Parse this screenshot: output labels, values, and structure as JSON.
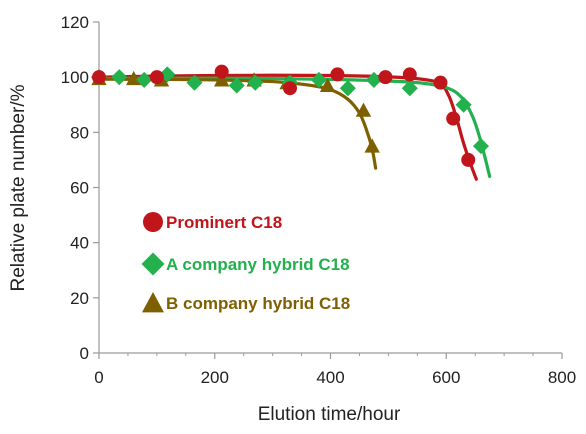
{
  "chart_data": {
    "type": "scatter",
    "xlabel": "Elution time/hour",
    "ylabel": "Relative plate number/%",
    "xlim": [
      0,
      800
    ],
    "ylim": [
      0,
      120
    ],
    "xticks": [
      0,
      200,
      400,
      600,
      800
    ],
    "yticks": [
      0,
      20,
      40,
      60,
      80,
      100,
      120
    ],
    "x_tick_labels": [
      "0",
      "200",
      "400",
      "600",
      "800"
    ],
    "y_tick_labels": [
      "0",
      "20",
      "40",
      "60",
      "80",
      "100",
      "120"
    ],
    "grid": false,
    "legend_position": "left-inside",
    "series": [
      {
        "name": "Prominert C18",
        "color": "#c0151b",
        "marker": "circle",
        "points": [
          [
            0,
            100
          ],
          [
            100,
            100
          ],
          [
            212,
            102
          ],
          [
            330,
            96
          ],
          [
            412,
            101
          ],
          [
            495,
            100
          ],
          [
            537,
            101
          ],
          [
            590,
            98
          ],
          [
            612,
            85
          ],
          [
            638,
            70
          ]
        ],
        "fit": [
          [
            0,
            100
          ],
          [
            100,
            100.4
          ],
          [
            200,
            100.6
          ],
          [
            300,
            100.7
          ],
          [
            400,
            100.6
          ],
          [
            500,
            100.1
          ],
          [
            560,
            99.2
          ],
          [
            590,
            97.5
          ],
          [
            605,
            93
          ],
          [
            618,
            85
          ],
          [
            630,
            76
          ],
          [
            643,
            68
          ],
          [
            652,
            63
          ]
        ]
      },
      {
        "name": "A company hybrid C18",
        "color": "#22b14c",
        "marker": "diamond",
        "points": [
          [
            0,
            100
          ],
          [
            35,
            100
          ],
          [
            78,
            99
          ],
          [
            118,
            101
          ],
          [
            165,
            98
          ],
          [
            238,
            97
          ],
          [
            270,
            98
          ],
          [
            330,
            98
          ],
          [
            380,
            99
          ],
          [
            430,
            96
          ],
          [
            475,
            99
          ],
          [
            537,
            96
          ],
          [
            630,
            90
          ],
          [
            660,
            75
          ]
        ],
        "fit": [
          [
            0,
            99.5
          ],
          [
            100,
            99.6
          ],
          [
            200,
            99.6
          ],
          [
            300,
            99.5
          ],
          [
            400,
            99.2
          ],
          [
            500,
            98.6
          ],
          [
            560,
            97.8
          ],
          [
            600,
            96.2
          ],
          [
            625,
            93
          ],
          [
            645,
            86
          ],
          [
            658,
            78
          ],
          [
            668,
            70
          ],
          [
            675,
            64
          ]
        ]
      },
      {
        "name": "B company hybrid C18",
        "color": "#7f6000",
        "marker": "triangle",
        "points": [
          [
            0,
            99.5
          ],
          [
            60,
            99.5
          ],
          [
            108,
            99
          ],
          [
            212,
            99
          ],
          [
            268,
            99
          ],
          [
            325,
            98
          ],
          [
            395,
            97
          ],
          [
            457,
            88
          ],
          [
            472,
            75
          ]
        ],
        "fit": [
          [
            0,
            99.3
          ],
          [
            100,
            99.2
          ],
          [
            200,
            99.0
          ],
          [
            300,
            98.4
          ],
          [
            360,
            97.2
          ],
          [
            400,
            95.5
          ],
          [
            430,
            92
          ],
          [
            450,
            87
          ],
          [
            462,
            81
          ],
          [
            472,
            74
          ],
          [
            478,
            67
          ]
        ]
      }
    ]
  }
}
